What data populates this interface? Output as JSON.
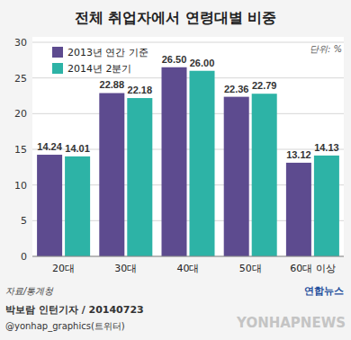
{
  "chart_data": {
    "type": "bar",
    "title": "전체 취업자에서 연령대별 비중",
    "categories": [
      "20대",
      "30대",
      "40대",
      "50대",
      "60대 이상"
    ],
    "series": [
      {
        "name": "2013년 연간 기준",
        "color": "#5d4b8f",
        "values": [
          14.24,
          22.88,
          26.5,
          22.36,
          13.12
        ],
        "value_labels": [
          "14.24",
          "22.88",
          "26.50",
          "22.36",
          "13.12"
        ]
      },
      {
        "name": "2014년 2분기",
        "color": "#2db3a6",
        "values": [
          14.01,
          22.18,
          26.0,
          22.79,
          14.13
        ],
        "value_labels": [
          "14.01",
          "22.18",
          "26.00",
          "22.79",
          "14.13"
        ]
      }
    ],
    "ylim": [
      0,
      30
    ],
    "yticks": [
      0,
      5,
      10,
      15,
      20,
      25,
      30
    ],
    "grid": true,
    "legend": "upper left",
    "data_labels": true,
    "annotations": [
      "단위: %",
      "자료/통계청",
      "박보람 인턴기자 / 20140723",
      "@yonhap_graphics(트위터)",
      "연합뉴스",
      "YONHAPNEWS"
    ]
  }
}
